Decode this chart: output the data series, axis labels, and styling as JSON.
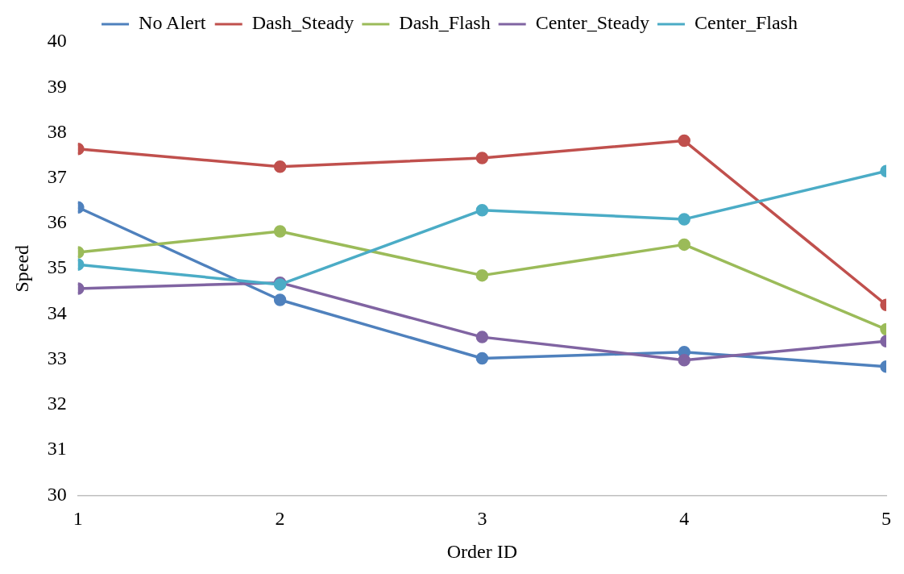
{
  "chart_data": {
    "type": "line",
    "xlabel": "Order ID",
    "ylabel": "Speed",
    "x": [
      1,
      2,
      3,
      4,
      5
    ],
    "xlim": [
      1,
      5
    ],
    "xticks": [
      1,
      2,
      3,
      4,
      5
    ],
    "ylim": [
      30,
      40
    ],
    "yticks": [
      30,
      31,
      32,
      33,
      34,
      35,
      36,
      37,
      38,
      39,
      40
    ],
    "grid": false,
    "legend": "top",
    "marker": "circle",
    "line_style": "solid",
    "series": [
      {
        "name": "No Alert",
        "color": "#4f81bd",
        "values": [
          36.35,
          34.31,
          33.02,
          33.16,
          32.84
        ]
      },
      {
        "name": "Dash_Steady",
        "color": "#c0504d",
        "values": [
          37.64,
          37.25,
          37.44,
          37.82,
          34.2
        ]
      },
      {
        "name": "Dash_Flash",
        "color": "#9bbb59",
        "values": [
          35.36,
          35.82,
          34.85,
          35.53,
          33.66
        ]
      },
      {
        "name": "Center_Steady",
        "color": "#8064a2",
        "values": [
          34.56,
          34.69,
          33.49,
          32.98,
          33.4
        ]
      },
      {
        "name": "Center_Flash",
        "color": "#4bacc6",
        "values": [
          35.09,
          34.65,
          36.29,
          36.09,
          37.15
        ]
      }
    ]
  }
}
